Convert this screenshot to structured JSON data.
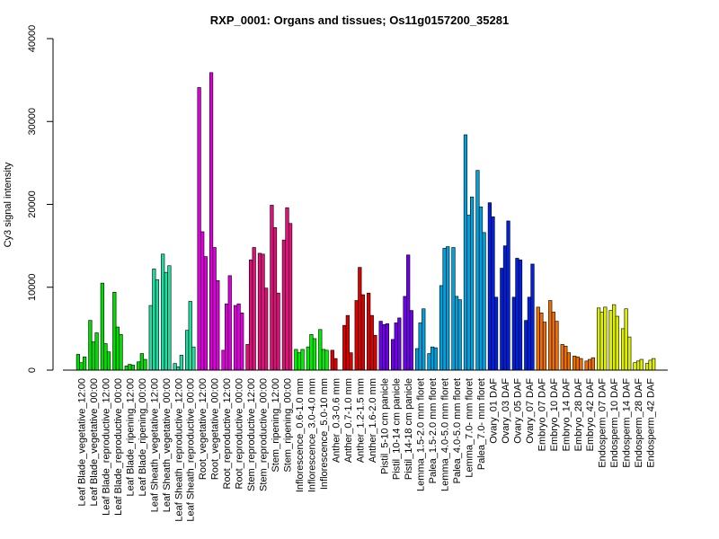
{
  "chart_data": {
    "type": "bar",
    "title": "RXP_0001: Organs and tissues; Os11g0157200_35281",
    "ylabel": "Cy3 signal intensity",
    "xlabel": "",
    "ylim": [
      0,
      40000
    ],
    "yticks": [
      "0",
      "10000",
      "20000",
      "30000",
      "40000"
    ],
    "grid": false,
    "legend": "none",
    "categories": [
      "Leaf Blade_vegetative_12:00",
      "Leaf Blade_vegetative_00:00",
      "Leaf Blade_reproductive_12:00",
      "Leaf Blade_reproductive_00:00",
      "Leaf Blade_ripening_12:00",
      "Leaf Blade_ripening_00:00",
      "Leaf Sheath_vegetative_12:00",
      "Leaf Sheath_vegetative_00:00",
      "Leaf Sheath_reproductive_12:00",
      "Leaf Sheath_reproductive_00:00",
      "Root_vegetative_12:00",
      "Root_vegetative_00:00",
      "Root_reproductive_12:00",
      "Root_reproductive_00:00",
      "Stem_reproductive_12:00",
      "Stem_reproductive_00:00",
      "Stem_ripening_12:00",
      "Stem_ripening_00:00",
      "Inflorescence_0.6-1.0 mm",
      "Inflorescence_3.0-4.0 mm",
      "Inflorescence_5.0-10 mm",
      "Anther_0.3-0.6 mm",
      "Anther_0.7-1.0 mm",
      "Anther_1.2-1.5 mm",
      "Anther_1.6-2.0 mm",
      "Pistil_5-10 cm panicle",
      "Pistil_10-14 cm panicle",
      "Pistil_14-18 cm panicle",
      "Lemma_1.5-2.0 mm floret",
      "Palea_1.5-2.0 mm floret",
      "Lemma_4.0-5.0 mm floret",
      "Palea_4.0-5.0 mm floret",
      "Lemma_7.0- mm floret",
      "Palea_7.0- mm floret",
      "Ovary_01 DAF",
      "Ovary_03 DAF",
      "Ovary_05 DAF",
      "Ovary_07 DAF",
      "Embryo_07 DAF",
      "Embryo_10 DAF",
      "Embryo_14 DAF",
      "Embryo_28 DAF",
      "Embryo_42 DAF",
      "Endosperm_07 DAF",
      "Endosperm_10 DAF",
      "Endosperm_14 DAF",
      "Endosperm_28 DAF",
      "Endosperm_42 DAF"
    ],
    "values": [
      [
        1900,
        900,
        1600
      ],
      [
        6000,
        3400,
        4500
      ],
      [
        10500,
        3200,
        2200
      ],
      [
        9400,
        5200,
        4300
      ],
      [
        500,
        700,
        600
      ],
      [
        1000,
        2000,
        1300
      ],
      [
        7800,
        12200,
        10900
      ],
      [
        14000,
        11800,
        12600
      ],
      [
        800,
        400,
        1800
      ],
      [
        4800,
        8300,
        2800
      ],
      [
        34100,
        16700,
        13700
      ],
      [
        35900,
        14800,
        10800
      ],
      [
        2400,
        8000,
        11400
      ],
      [
        7800,
        8000,
        6900
      ],
      [
        3100,
        13300,
        14800
      ],
      [
        14100,
        14000,
        9900
      ],
      [
        19900,
        17200,
        9300
      ],
      [
        15700,
        19600,
        17700
      ],
      [
        2500,
        2100,
        2500
      ],
      [
        2800,
        4300,
        3800
      ],
      [
        4900,
        2500,
        2400
      ],
      [
        2400,
        1400,
        0
      ],
      [
        5400,
        6600,
        2100
      ],
      [
        8400,
        12400,
        9100
      ],
      [
        9300,
        6600,
        4200
      ],
      [
        5900,
        5500,
        5600
      ],
      [
        3700,
        5700,
        6300
      ],
      [
        8900,
        13900,
        7200
      ],
      [
        2600,
        5700,
        7400
      ],
      [
        2000,
        2800,
        2700
      ],
      [
        10200,
        14700,
        14900
      ],
      [
        14800,
        8900,
        8500
      ],
      [
        28400,
        18700,
        20900
      ],
      [
        24100,
        19700,
        16600
      ],
      [
        20200,
        18500,
        8800
      ],
      [
        12300,
        15000,
        18000
      ],
      [
        8800,
        13500,
        13300
      ],
      [
        6000,
        8800,
        12800
      ],
      [
        7600,
        6900,
        5800
      ],
      [
        8400,
        7000,
        5900
      ],
      [
        3100,
        2900,
        2100
      ],
      [
        1700,
        1600,
        1400
      ],
      [
        1100,
        1300,
        1500
      ],
      [
        7500,
        7000,
        7600
      ],
      [
        7200,
        7900,
        6500
      ],
      [
        5000,
        7400,
        4000
      ],
      [
        900,
        1100,
        1300
      ],
      [
        800,
        1200,
        1400
      ]
    ],
    "colors": [
      "#00dd00",
      "#00dd00",
      "#00dd00",
      "#00dd00",
      "#00dd00",
      "#00dd00",
      "#22dda0",
      "#22dda0",
      "#22dda0",
      "#22dda0",
      "#dd00dd",
      "#dd00dd",
      "#dd00dd",
      "#dd00dd",
      "#e0107a",
      "#e0107a",
      "#e0107a",
      "#e0107a",
      "#00ee00",
      "#00ee00",
      "#00ee00",
      "#dd0000",
      "#dd0000",
      "#dd0000",
      "#dd0000",
      "#7000ee",
      "#7000ee",
      "#7000ee",
      "#00a0dd",
      "#00a0dd",
      "#00a0dd",
      "#00a0dd",
      "#00a0dd",
      "#00a0dd",
      "#0020dd",
      "#0020dd",
      "#0020dd",
      "#0020dd",
      "#ee7000",
      "#ee7000",
      "#ee7000",
      "#ee7000",
      "#ee7000",
      "#ddee00",
      "#ddee00",
      "#ddee00",
      "#ddee00",
      "#ddee00"
    ]
  }
}
